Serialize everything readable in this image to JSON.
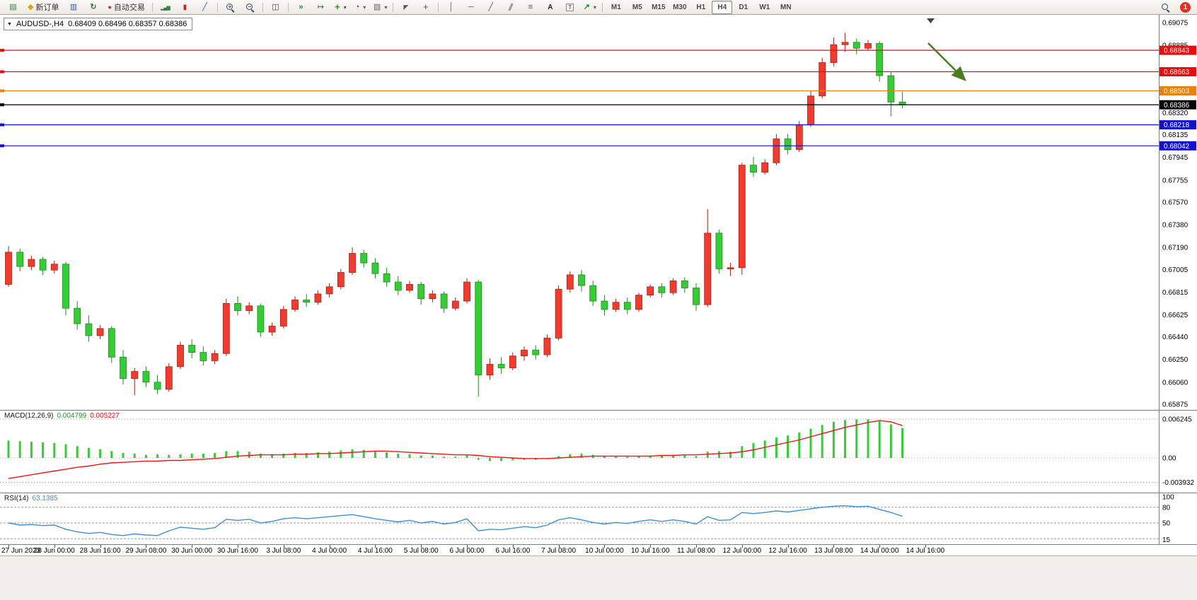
{
  "toolbar": {
    "new_order_label": "新订单",
    "auto_trading_label": "自动交易",
    "timeframes": [
      "M1",
      "M5",
      "M15",
      "M30",
      "H1",
      "H4",
      "D1",
      "W1",
      "MN"
    ],
    "active_timeframe": "H4",
    "notification_badge": "1",
    "icons": [
      "new-chart-icon",
      "new-order-icon",
      "market-watch-icon",
      "refresh-icon",
      "auto-trading-icon",
      "bar-chart-icon",
      "candlestick-icon",
      "line-chart-icon",
      "zoom-in-icon",
      "zoom-out-icon",
      "tile-windows-icon",
      "auto-scroll-icon",
      "chart-shift-icon",
      "indicators-icon",
      "periods-icon",
      "templates-icon",
      "cursor-icon",
      "crosshair-icon",
      "vertical-line-icon",
      "horizontal-line-icon",
      "trendline-icon",
      "channel-icon",
      "fibonacci-icon",
      "text-icon",
      "text-label-icon",
      "arrows-icon",
      "search-icon"
    ]
  },
  "chart": {
    "symbol": "AUDUSD-,H4",
    "ohlc_info": "0.68409 0.68496 0.68357 0.68386",
    "price_axis": {
      "max": 0.69075,
      "min": 0.65875,
      "ticks": [
        "0.69075",
        "0.68885",
        "0.68320",
        "0.68135",
        "0.67945",
        "0.67755",
        "0.67570",
        "0.67380",
        "0.67190",
        "0.67005",
        "0.66815",
        "0.66625",
        "0.66440",
        "0.66250",
        "0.66060",
        "0.65875"
      ]
    },
    "levels": [
      {
        "name": "resistance-1",
        "price": 0.68843,
        "label": "0.68843",
        "color": "#e80c0c"
      },
      {
        "name": "resistance-2",
        "price": 0.68663,
        "label": "0.68663",
        "color": "#e80c0c"
      },
      {
        "name": "pivot",
        "price": 0.68503,
        "label": "0.68503",
        "color": "#e8820a"
      },
      {
        "name": "current-price",
        "price": 0.68386,
        "label": "0.68386",
        "color": "#000000"
      },
      {
        "name": "support-1",
        "price": 0.68218,
        "label": "0.68218",
        "color": "#1212cc"
      },
      {
        "name": "support-2",
        "price": 0.68042,
        "label": "0.68042",
        "color": "#1212cc"
      }
    ],
    "annotation_arrow": {
      "color": "#4a7d22"
    }
  },
  "chart_data": {
    "type": "candlestick",
    "symbol": "AUDUSD",
    "timeframe": "H4",
    "bull_color": "#f23b2e",
    "bull_border": "#a82015",
    "bear_color": "#35cc35",
    "bear_border": "#1e8c1e",
    "candles_per_label": 4,
    "x_labels": [
      "27 Jun 2023",
      "28 Jun 00:00",
      "28 Jun 16:00",
      "29 Jun 08:00",
      "30 Jun 00:00",
      "30 Jun 16:00",
      "3 Jul 08:00",
      "4 Jul 00:00",
      "4 Jul 16:00",
      "5 Jul 08:00",
      "6 Jul 00:00",
      "6 Jul 16:00",
      "7 Jul 08:00",
      "10 Jul 00:00",
      "10 Jul 16:00",
      "11 Jul 08:00",
      "12 Jul 00:00",
      "12 Jul 16:00",
      "13 Jul 08:00",
      "14 Jul 00:00",
      "14 Jul 16:00"
    ],
    "current_candle": {
      "open": "0.68409",
      "high": "0.68496",
      "low": "0.68357",
      "close": "0.68386"
    },
    "ohlc": [
      [
        0.6688,
        0.672,
        0.6686,
        0.6715
      ],
      [
        0.6715,
        0.6718,
        0.6699,
        0.6703
      ],
      [
        0.6703,
        0.6712,
        0.67,
        0.6709
      ],
      [
        0.6709,
        0.6711,
        0.6696,
        0.67
      ],
      [
        0.67,
        0.6708,
        0.6697,
        0.6705
      ],
      [
        0.6705,
        0.6707,
        0.6662,
        0.6668
      ],
      [
        0.6668,
        0.6674,
        0.665,
        0.6655
      ],
      [
        0.6655,
        0.6662,
        0.664,
        0.6645
      ],
      [
        0.6645,
        0.6654,
        0.6642,
        0.6651
      ],
      [
        0.6651,
        0.6653,
        0.6622,
        0.6627
      ],
      [
        0.6627,
        0.6633,
        0.6604,
        0.6609
      ],
      [
        0.6609,
        0.6618,
        0.6595,
        0.6615
      ],
      [
        0.6615,
        0.6619,
        0.6602,
        0.6606
      ],
      [
        0.6606,
        0.6612,
        0.6596,
        0.66
      ],
      [
        0.66,
        0.6622,
        0.6598,
        0.6619
      ],
      [
        0.6619,
        0.664,
        0.6617,
        0.6637
      ],
      [
        0.6637,
        0.6642,
        0.6626,
        0.6631
      ],
      [
        0.6631,
        0.6636,
        0.662,
        0.6624
      ],
      [
        0.6624,
        0.6633,
        0.6621,
        0.663
      ],
      [
        0.663,
        0.6676,
        0.6628,
        0.6672
      ],
      [
        0.6672,
        0.6678,
        0.6662,
        0.6666
      ],
      [
        0.6666,
        0.6673,
        0.6663,
        0.667
      ],
      [
        0.667,
        0.6672,
        0.6644,
        0.6648
      ],
      [
        0.6648,
        0.6656,
        0.6645,
        0.6653
      ],
      [
        0.6653,
        0.667,
        0.6651,
        0.6667
      ],
      [
        0.6667,
        0.6678,
        0.6665,
        0.6675
      ],
      [
        0.6675,
        0.668,
        0.6669,
        0.6673
      ],
      [
        0.6673,
        0.6683,
        0.6671,
        0.668
      ],
      [
        0.668,
        0.6689,
        0.6677,
        0.6686
      ],
      [
        0.6686,
        0.6701,
        0.6684,
        0.6698
      ],
      [
        0.6698,
        0.6719,
        0.6696,
        0.6714
      ],
      [
        0.6714,
        0.6717,
        0.6702,
        0.6706
      ],
      [
        0.6706,
        0.671,
        0.6693,
        0.6697
      ],
      [
        0.6697,
        0.6702,
        0.6686,
        0.669
      ],
      [
        0.669,
        0.6695,
        0.6679,
        0.6683
      ],
      [
        0.6683,
        0.6691,
        0.6681,
        0.6688
      ],
      [
        0.6688,
        0.669,
        0.6671,
        0.6676
      ],
      [
        0.6676,
        0.6683,
        0.6673,
        0.668
      ],
      [
        0.668,
        0.6682,
        0.6664,
        0.6668
      ],
      [
        0.6668,
        0.6677,
        0.6666,
        0.6674
      ],
      [
        0.6674,
        0.6693,
        0.6672,
        0.669
      ],
      [
        0.669,
        0.6692,
        0.6594,
        0.6612
      ],
      [
        0.6612,
        0.6626,
        0.6608,
        0.6621
      ],
      [
        0.6621,
        0.6627,
        0.6613,
        0.6618
      ],
      [
        0.6618,
        0.6631,
        0.6616,
        0.6628
      ],
      [
        0.6628,
        0.6636,
        0.6624,
        0.6633
      ],
      [
        0.6633,
        0.6637,
        0.6625,
        0.6629
      ],
      [
        0.6629,
        0.6646,
        0.6627,
        0.6643
      ],
      [
        0.6643,
        0.6687,
        0.6641,
        0.6684
      ],
      [
        0.6684,
        0.6699,
        0.6681,
        0.6696
      ],
      [
        0.6696,
        0.67,
        0.6682,
        0.6687
      ],
      [
        0.6687,
        0.6691,
        0.667,
        0.6674
      ],
      [
        0.6674,
        0.6679,
        0.6662,
        0.6667
      ],
      [
        0.6667,
        0.6676,
        0.6665,
        0.6673
      ],
      [
        0.6673,
        0.6677,
        0.6663,
        0.6667
      ],
      [
        0.6667,
        0.6681,
        0.6665,
        0.6679
      ],
      [
        0.6679,
        0.6688,
        0.6677,
        0.6686
      ],
      [
        0.6686,
        0.6689,
        0.6677,
        0.6681
      ],
      [
        0.6681,
        0.6693,
        0.6679,
        0.6691
      ],
      [
        0.6691,
        0.6694,
        0.6681,
        0.6685
      ],
      [
        0.6685,
        0.6689,
        0.6666,
        0.6671
      ],
      [
        0.6671,
        0.6751,
        0.6669,
        0.6731
      ],
      [
        0.6731,
        0.6734,
        0.6697,
        0.6701
      ],
      [
        0.6701,
        0.6706,
        0.6695,
        0.6702
      ],
      [
        0.6702,
        0.679,
        0.6696,
        0.6788
      ],
      [
        0.6788,
        0.6795,
        0.6778,
        0.6782
      ],
      [
        0.6782,
        0.6793,
        0.678,
        0.679
      ],
      [
        0.679,
        0.6814,
        0.6788,
        0.681
      ],
      [
        0.681,
        0.6814,
        0.6797,
        0.6801
      ],
      [
        0.6801,
        0.6825,
        0.6799,
        0.6822
      ],
      [
        0.6822,
        0.685,
        0.682,
        0.6846
      ],
      [
        0.6846,
        0.6878,
        0.6844,
        0.6874
      ],
      [
        0.6874,
        0.6895,
        0.6871,
        0.6889
      ],
      [
        0.6889,
        0.6899,
        0.6883,
        0.6891
      ],
      [
        0.6891,
        0.6894,
        0.6881,
        0.6886
      ],
      [
        0.6886,
        0.6893,
        0.6884,
        0.689
      ],
      [
        0.689,
        0.6892,
        0.6858,
        0.6863
      ],
      [
        0.6863,
        0.6866,
        0.6829,
        0.68409
      ],
      [
        0.68409,
        0.68496,
        0.68357,
        0.68386
      ]
    ]
  },
  "macd": {
    "label": "MACD(12,26,9)",
    "main_value": "0.004799",
    "signal_value": "0.005227",
    "axis": [
      "0.006245",
      "0.00",
      "-0.003932"
    ],
    "axis_values": [
      0.006245,
      0,
      -0.003932
    ],
    "histogram_color": "#35cc35",
    "signal_color": "#f01414",
    "histogram": [
      0.0028,
      0.0027,
      0.0026,
      0.0025,
      0.0024,
      0.0022,
      0.0019,
      0.0016,
      0.0014,
      0.0011,
      0.0008,
      0.0007,
      0.0005,
      0.0006,
      0.0005,
      0.0006,
      0.0007,
      0.0007,
      0.0008,
      0.0011,
      0.0011,
      0.001,
      0.0007,
      0.0006,
      0.0007,
      0.0008,
      0.0008,
      0.0009,
      0.001,
      0.0012,
      0.0014,
      0.0013,
      0.0011,
      0.0009,
      0.0007,
      0.0006,
      0.0004,
      0.0004,
      0.0002,
      0.0002,
      0.0004,
      -0.0003,
      -0.0005,
      -0.0005,
      -0.0004,
      -0.0003,
      -0.0003,
      -0.0001,
      0.0003,
      0.0006,
      0.0007,
      0.0005,
      0.0003,
      0.0003,
      0.0002,
      0.0003,
      0.0004,
      0.0004,
      0.0005,
      0.0005,
      0.0003,
      0.001,
      0.0011,
      0.001,
      0.0019,
      0.0024,
      0.0028,
      0.0033,
      0.0036,
      0.0041,
      0.0047,
      0.0053,
      0.0058,
      0.0061,
      0.0062,
      0.0062,
      0.0059,
      0.0054,
      0.0048
    ],
    "signal": [
      -0.0033,
      -0.003,
      -0.0027,
      -0.0024,
      -0.0021,
      -0.0018,
      -0.0015,
      -0.0013,
      -0.001,
      -0.0008,
      -0.0007,
      -0.0006,
      -0.0005,
      -0.0005,
      -0.0004,
      -0.0004,
      -0.0003,
      -0.0002,
      -0.0001,
      0.0001,
      0.0003,
      0.0004,
      0.0005,
      0.0005,
      0.0005,
      0.0006,
      0.0006,
      0.0007,
      0.0007,
      0.0008,
      0.0009,
      0.001,
      0.0011,
      0.0011,
      0.001,
      0.0009,
      0.0008,
      0.0007,
      0.0006,
      0.0005,
      0.0005,
      0.0004,
      0.0002,
      0.0001,
      0.0,
      -0.0001,
      -0.0001,
      -0.0001,
      0.0,
      0.0001,
      0.0002,
      0.0003,
      0.0003,
      0.0003,
      0.0003,
      0.0003,
      0.0003,
      0.0004,
      0.0004,
      0.0005,
      0.0005,
      0.0006,
      0.0007,
      0.0008,
      0.001,
      0.0013,
      0.0017,
      0.0021,
      0.0025,
      0.0029,
      0.0034,
      0.0039,
      0.0044,
      0.0049,
      0.0053,
      0.0057,
      0.006,
      0.0058,
      0.0052
    ]
  },
  "rsi": {
    "label": "RSI(14)",
    "value": "63.1385",
    "axis": [
      "100",
      "80",
      "50",
      "15"
    ],
    "levels": [
      80,
      50,
      20
    ],
    "line_color": "#3f8fd6",
    "values": [
      50,
      46,
      47,
      45,
      46,
      38,
      33,
      30,
      32,
      28,
      26,
      29,
      27,
      26,
      35,
      42,
      40,
      38,
      41,
      57,
      55,
      57,
      50,
      53,
      58,
      60,
      58,
      60,
      62,
      64,
      66,
      62,
      58,
      55,
      52,
      55,
      50,
      53,
      48,
      51,
      58,
      35,
      38,
      37,
      40,
      43,
      41,
      46,
      56,
      60,
      56,
      51,
      48,
      51,
      49,
      53,
      56,
      53,
      56,
      53,
      48,
      62,
      55,
      56,
      70,
      68,
      70,
      73,
      71,
      74,
      77,
      80,
      82,
      83,
      81,
      82,
      76,
      70,
      63
    ]
  }
}
